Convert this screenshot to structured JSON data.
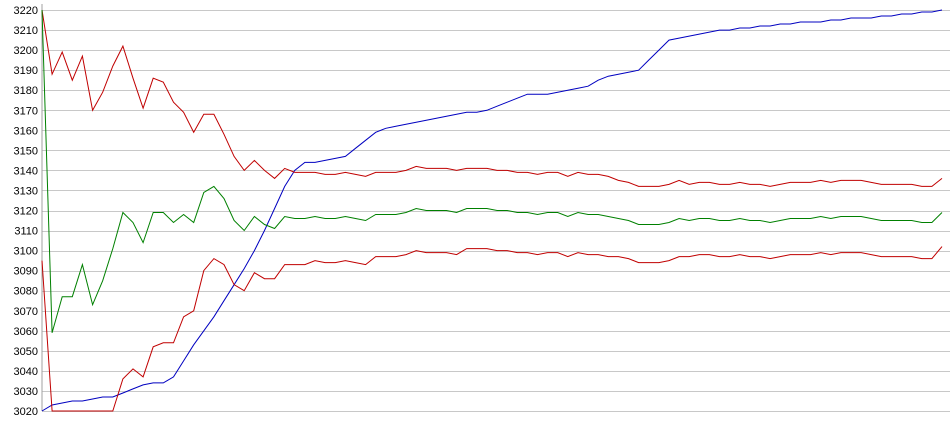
{
  "chart_data": {
    "type": "line",
    "title": "",
    "xlabel": "",
    "ylabel": "",
    "ylim": [
      3020,
      3220
    ],
    "y_ticks": [
      3220,
      3210,
      3200,
      3190,
      3180,
      3170,
      3160,
      3150,
      3140,
      3130,
      3120,
      3110,
      3100,
      3090,
      3080,
      3070,
      3060,
      3050,
      3040,
      3030,
      3020
    ],
    "grid": true,
    "legend": "none",
    "x": [
      0,
      1,
      2,
      3,
      4,
      5,
      6,
      7,
      8,
      9,
      10,
      11,
      12,
      13,
      14,
      15,
      16,
      17,
      18,
      19,
      20,
      21,
      22,
      23,
      24,
      25,
      26,
      27,
      28,
      29,
      30,
      31,
      32,
      33,
      34,
      35,
      36,
      37,
      38,
      39,
      40,
      41,
      42,
      43,
      44,
      45,
      46,
      47,
      48,
      49,
      50,
      51,
      52,
      53,
      54,
      55,
      56,
      57,
      58,
      59,
      60,
      61,
      62,
      63,
      64,
      65,
      66,
      67,
      68,
      69,
      70,
      71,
      72,
      73,
      74,
      75,
      76,
      77,
      78,
      79,
      80,
      81,
      82,
      83,
      84,
      85,
      86,
      87,
      88,
      89
    ],
    "series": [
      {
        "color": "#0000c0",
        "values": [
          3020,
          3023,
          3024,
          3025,
          3025,
          3026,
          3027,
          3027,
          3029,
          3031,
          3033,
          3034,
          3034,
          3037,
          3045,
          3053,
          3060,
          3067,
          3075,
          3083,
          3091,
          3100,
          3110,
          3121,
          3132,
          3140,
          3144,
          3144,
          3145,
          3146,
          3147,
          3151,
          3155,
          3159,
          3161,
          3162,
          3163,
          3164,
          3165,
          3166,
          3167,
          3168,
          3169,
          3169,
          3170,
          3172,
          3174,
          3176,
          3178,
          3178,
          3178,
          3179,
          3180,
          3181,
          3182,
          3185,
          3187,
          3188,
          3189,
          3190,
          3195,
          3200,
          3205,
          3206,
          3207,
          3208,
          3209,
          3210,
          3210,
          3211,
          3211,
          3212,
          3212,
          3213,
          3213,
          3214,
          3214,
          3214,
          3215,
          3215,
          3216,
          3216,
          3216,
          3217,
          3217,
          3218,
          3218,
          3219,
          3219,
          3220
        ]
      },
      {
        "color": "#c00000",
        "values": [
          3220,
          3188,
          3199,
          3185,
          3197,
          3170,
          3179,
          3192,
          3202,
          3186,
          3171,
          3186,
          3184,
          3174,
          3169,
          3159,
          3168,
          3168,
          3158,
          3147,
          3140,
          3145,
          3140,
          3136,
          3141,
          3139,
          3139,
          3139,
          3138,
          3138,
          3139,
          3138,
          3137,
          3139,
          3139,
          3139,
          3140,
          3142,
          3141,
          3141,
          3141,
          3140,
          3141,
          3141,
          3141,
          3140,
          3140,
          3139,
          3139,
          3138,
          3139,
          3139,
          3137,
          3139,
          3138,
          3138,
          3137,
          3135,
          3134,
          3132,
          3132,
          3132,
          3133,
          3135,
          3133,
          3134,
          3134,
          3133,
          3133,
          3134,
          3133,
          3133,
          3132,
          3133,
          3134,
          3134,
          3134,
          3135,
          3134,
          3135,
          3135,
          3135,
          3134,
          3133,
          3133,
          3133,
          3133,
          3132,
          3132,
          3136
        ]
      },
      {
        "color": "#008000",
        "values": [
          3220,
          3059,
          3077,
          3077,
          3093,
          3073,
          3085,
          3101,
          3119,
          3114,
          3104,
          3119,
          3119,
          3114,
          3118,
          3114,
          3129,
          3132,
          3126,
          3115,
          3110,
          3117,
          3113,
          3111,
          3117,
          3116,
          3116,
          3117,
          3116,
          3116,
          3117,
          3116,
          3115,
          3118,
          3118,
          3118,
          3119,
          3121,
          3120,
          3120,
          3120,
          3119,
          3121,
          3121,
          3121,
          3120,
          3120,
          3119,
          3119,
          3118,
          3119,
          3119,
          3117,
          3119,
          3118,
          3118,
          3117,
          3116,
          3115,
          3113,
          3113,
          3113,
          3114,
          3116,
          3115,
          3116,
          3116,
          3115,
          3115,
          3116,
          3115,
          3115,
          3114,
          3115,
          3116,
          3116,
          3116,
          3117,
          3116,
          3117,
          3117,
          3117,
          3116,
          3115,
          3115,
          3115,
          3115,
          3114,
          3114,
          3119
        ]
      },
      {
        "color": "#c00000",
        "values": [
          3095,
          3020,
          3020,
          3020,
          3020,
          3020,
          3020,
          3020,
          3036,
          3041,
          3037,
          3052,
          3054,
          3054,
          3067,
          3070,
          3090,
          3096,
          3093,
          3083,
          3080,
          3089,
          3086,
          3086,
          3093,
          3093,
          3093,
          3095,
          3094,
          3094,
          3095,
          3094,
          3093,
          3097,
          3097,
          3097,
          3098,
          3100,
          3099,
          3099,
          3099,
          3098,
          3101,
          3101,
          3101,
          3100,
          3100,
          3099,
          3099,
          3098,
          3099,
          3099,
          3097,
          3099,
          3098,
          3098,
          3097,
          3097,
          3096,
          3094,
          3094,
          3094,
          3095,
          3097,
          3097,
          3098,
          3098,
          3097,
          3097,
          3098,
          3097,
          3097,
          3096,
          3097,
          3098,
          3098,
          3098,
          3099,
          3098,
          3099,
          3099,
          3099,
          3098,
          3097,
          3097,
          3097,
          3097,
          3096,
          3096,
          3102
        ]
      }
    ]
  }
}
